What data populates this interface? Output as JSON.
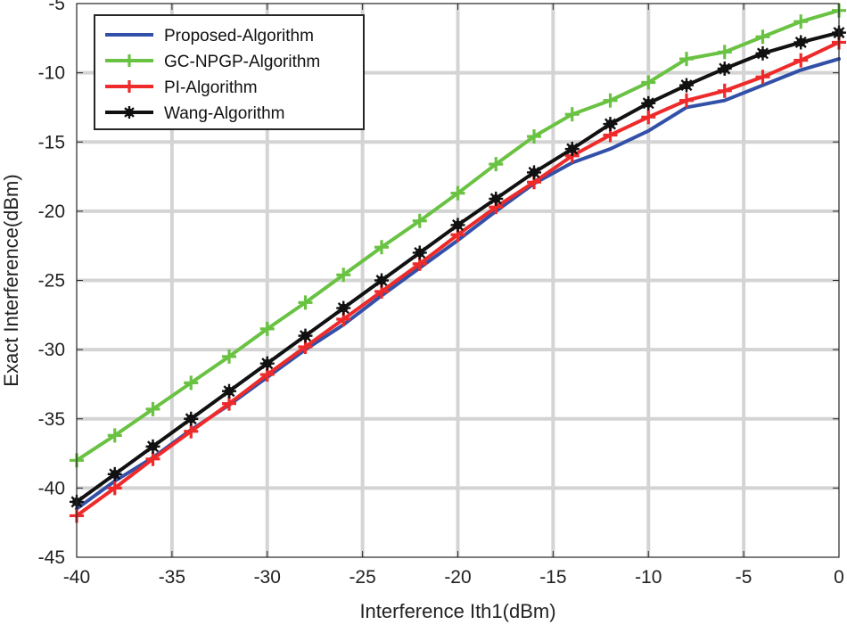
{
  "chart_data": {
    "type": "line",
    "xlabel": "Interference Ith1(dBm)",
    "ylabel": "Exact Interference(dBm)",
    "xlim": [
      -40,
      0
    ],
    "ylim": [
      -45,
      -5
    ],
    "xticks": [
      -40,
      -35,
      -30,
      -25,
      -20,
      -15,
      -10,
      -5,
      0
    ],
    "yticks": [
      -5,
      -10,
      -15,
      -20,
      -25,
      -30,
      -35,
      -40,
      -45
    ],
    "grid": true,
    "legend_position": "top-left",
    "x": [
      -40,
      -38,
      -36,
      -34,
      -32,
      -30,
      -28,
      -26,
      -24,
      -22,
      -20,
      -18,
      -16,
      -14,
      -12,
      -10,
      -8,
      -6,
      -4,
      -2,
      0
    ],
    "series": [
      {
        "name": "Proposed-Algorithm",
        "color": "#3350a8",
        "marker": "none",
        "values": [
          -41.5,
          -39.5,
          -37.8,
          -35.8,
          -34.0,
          -32.0,
          -30.0,
          -28.2,
          -26.1,
          -24.1,
          -22.1,
          -20.0,
          -18.0,
          -16.5,
          -15.5,
          -14.2,
          -12.5,
          -12.0,
          -10.9,
          -9.8,
          -9.0
        ]
      },
      {
        "name": "GC-NPGP-Algorithm",
        "color": "#6ac243",
        "marker": "plus",
        "values": [
          -38.0,
          -36.2,
          -34.3,
          -32.4,
          -30.5,
          -28.5,
          -26.6,
          -24.6,
          -22.6,
          -20.7,
          -18.7,
          -16.6,
          -14.6,
          -13.0,
          -12.0,
          -10.7,
          -9.0,
          -8.5,
          -7.4,
          -6.3,
          -5.5
        ]
      },
      {
        "name": "PI-Algorithm",
        "color": "#ee2a2a",
        "marker": "plus",
        "values": [
          -42.0,
          -40.0,
          -37.9,
          -35.9,
          -33.9,
          -31.8,
          -29.8,
          -27.8,
          -25.8,
          -23.8,
          -21.7,
          -19.7,
          -17.9,
          -16.0,
          -14.5,
          -13.2,
          -12.0,
          -11.3,
          -10.3,
          -9.1,
          -7.8
        ]
      },
      {
        "name": "Wang-Algorithm",
        "color": "#111111",
        "marker": "asterisk",
        "values": [
          -41.0,
          -39.0,
          -37.0,
          -35.0,
          -33.0,
          -31.0,
          -29.0,
          -27.0,
          -25.0,
          -23.0,
          -21.0,
          -19.1,
          -17.2,
          -15.5,
          -13.7,
          -12.2,
          -10.9,
          -9.7,
          -8.6,
          -7.8,
          -7.1
        ]
      }
    ]
  }
}
